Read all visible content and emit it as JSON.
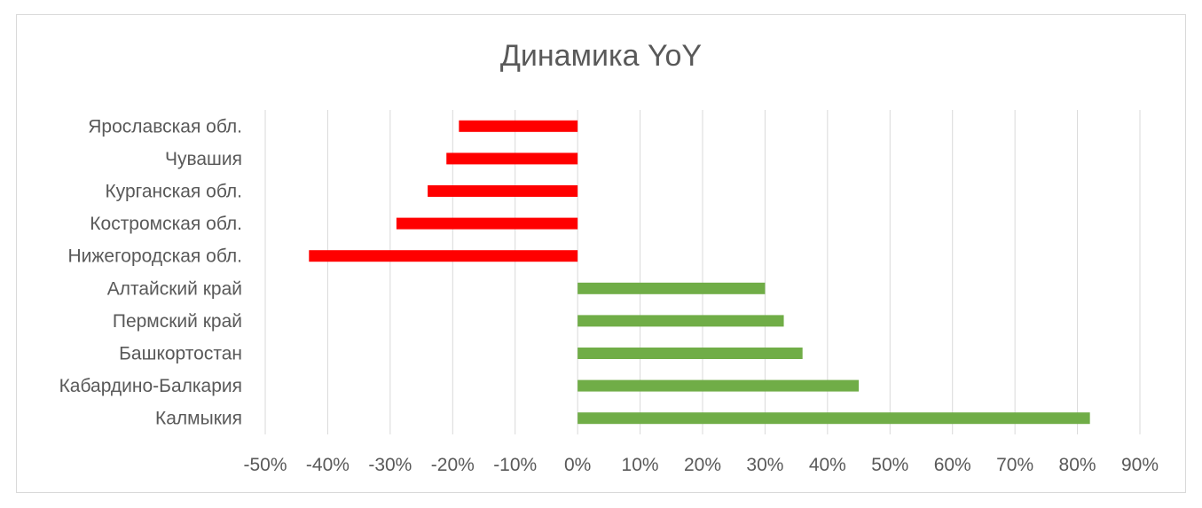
{
  "chart_data": {
    "type": "bar",
    "orientation": "horizontal",
    "title": "Динамика YoY",
    "xlabel": "",
    "ylabel": "",
    "categories": [
      "Ярославская обл.",
      "Чувашия",
      "Курганская обл.",
      "Костромская обл.",
      "Нижегородская обл.",
      "Алтайский край",
      "Пермский край",
      "Башкортостан",
      "Кабардино-Балкария",
      "Калмыкия"
    ],
    "values": [
      -19,
      -21,
      -24,
      -29,
      -43,
      30,
      33,
      36,
      45,
      82
    ],
    "unit": "%",
    "xlim": [
      -50,
      90
    ],
    "x_ticks": [
      -50,
      -40,
      -30,
      -20,
      -10,
      0,
      10,
      20,
      30,
      40,
      50,
      60,
      70,
      80,
      90
    ],
    "x_tick_labels": [
      "-50%",
      "-40%",
      "-30%",
      "-20%",
      "-10%",
      "0%",
      "10%",
      "20%",
      "30%",
      "40%",
      "50%",
      "60%",
      "70%",
      "80%",
      "90%"
    ],
    "grid": "vertical",
    "legend": "none",
    "colors": {
      "negative": "#ff0000",
      "positive": "#70ad47",
      "grid": "#d9d9d9",
      "text": "#595959"
    }
  }
}
